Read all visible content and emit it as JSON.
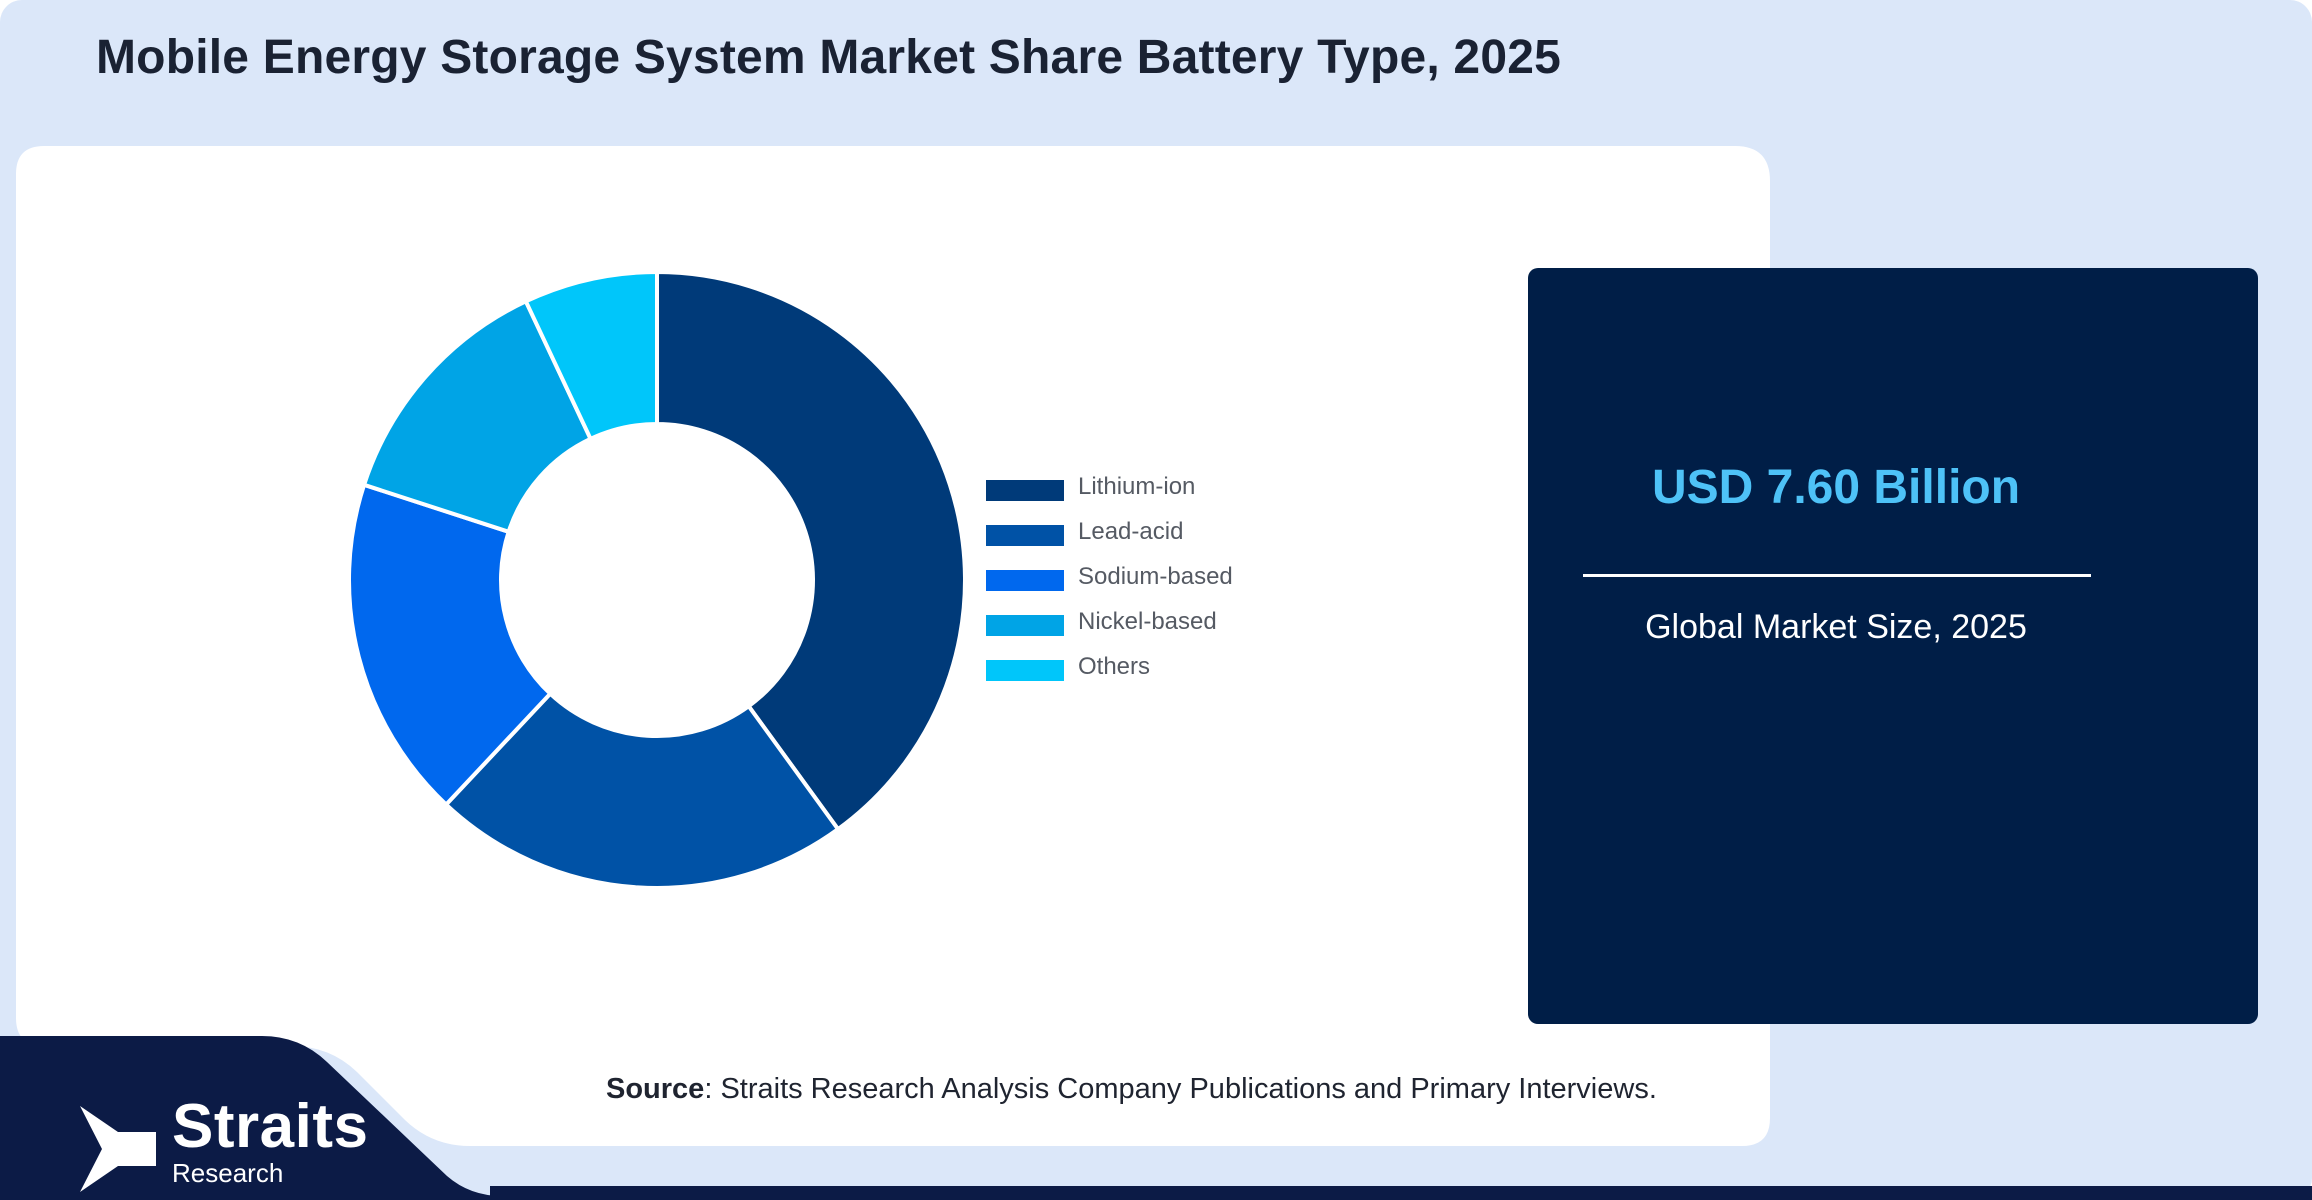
{
  "title": "Mobile Energy Storage System Market Share Battery Type, 2025",
  "chart_data": {
    "type": "pie",
    "donut": true,
    "categories": [
      "Lithium-ion",
      "Lead-acid",
      "Sodium-based",
      "Nickel-based",
      "Others"
    ],
    "values": [
      40,
      22,
      18,
      13,
      7
    ],
    "colors": [
      "#003a79",
      "#0052a6",
      "#0068ee",
      "#00a4e6",
      "#00c6fa"
    ],
    "legend_position": "right"
  },
  "market_card": {
    "value": "USD 7.60 Billion",
    "label": "Global Market Size, 2025"
  },
  "source": {
    "label": "Source",
    "text": ": Straits Research Analysis Company Publications and Primary Interviews."
  },
  "brand": {
    "name": "Straits",
    "sub": "Research"
  },
  "colors": {
    "background": "#dbe7f9",
    "panel": "#ffffff",
    "card": "#001e47",
    "footer": "#0c1b46",
    "accent": "#4ec2f7"
  }
}
